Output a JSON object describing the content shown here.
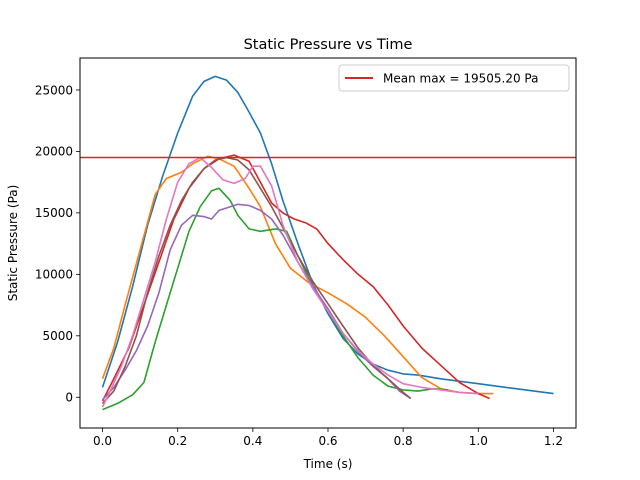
{
  "chart_data": {
    "type": "line",
    "title": "Static Pressure vs Time",
    "xlabel": "Time (s)",
    "ylabel": "Static Pressure (Pa)",
    "xlim": [
      -0.06,
      1.26
    ],
    "ylim": [
      -2500,
      27600
    ],
    "xticks": [
      0.0,
      0.2,
      0.4,
      0.6,
      0.8,
      1.0,
      1.2
    ],
    "xtick_labels": [
      "0.0",
      "0.2",
      "0.4",
      "0.6",
      "0.8",
      "1.0",
      "1.2"
    ],
    "yticks": [
      0,
      5000,
      10000,
      15000,
      20000,
      25000
    ],
    "ytick_labels": [
      "0",
      "5000",
      "10000",
      "15000",
      "20000",
      "25000"
    ],
    "grid": false,
    "legend_position": "top-right",
    "reference_line": {
      "y": 19505.2,
      "label": "Mean max = 19505.20 Pa",
      "color": "#d62728"
    },
    "series": [
      {
        "color": "#1f77b4",
        "points": [
          [
            0.0,
            800
          ],
          [
            0.04,
            4500
          ],
          [
            0.08,
            9000
          ],
          [
            0.12,
            14000
          ],
          [
            0.16,
            18000
          ],
          [
            0.2,
            21500
          ],
          [
            0.24,
            24500
          ],
          [
            0.27,
            25700
          ],
          [
            0.3,
            26100
          ],
          [
            0.33,
            25800
          ],
          [
            0.36,
            24800
          ],
          [
            0.39,
            23200
          ],
          [
            0.42,
            21500
          ],
          [
            0.45,
            19000
          ],
          [
            0.48,
            16000
          ],
          [
            0.52,
            12500
          ],
          [
            0.56,
            9200
          ],
          [
            0.6,
            6800
          ],
          [
            0.64,
            4800
          ],
          [
            0.68,
            3500
          ],
          [
            0.72,
            2700
          ],
          [
            0.76,
            2200
          ],
          [
            0.8,
            1900
          ],
          [
            0.84,
            1800
          ],
          [
            0.9,
            1500
          ],
          [
            1.0,
            1100
          ],
          [
            1.1,
            700
          ],
          [
            1.2,
            300
          ]
        ]
      },
      {
        "color": "#ff7f0e",
        "points": [
          [
            0.0,
            1500
          ],
          [
            0.03,
            4000
          ],
          [
            0.06,
            7500
          ],
          [
            0.1,
            12000
          ],
          [
            0.14,
            16500
          ],
          [
            0.17,
            17800
          ],
          [
            0.21,
            18300
          ],
          [
            0.24,
            19000
          ],
          [
            0.28,
            19600
          ],
          [
            0.31,
            19400
          ],
          [
            0.35,
            18800
          ],
          [
            0.39,
            17000
          ],
          [
            0.42,
            15500
          ],
          [
            0.46,
            12500
          ],
          [
            0.5,
            10500
          ],
          [
            0.55,
            9300
          ],
          [
            0.6,
            8500
          ],
          [
            0.65,
            7600
          ],
          [
            0.7,
            6500
          ],
          [
            0.75,
            5000
          ],
          [
            0.8,
            3300
          ],
          [
            0.85,
            1600
          ],
          [
            0.9,
            700
          ],
          [
            0.95,
            400
          ],
          [
            1.0,
            300
          ],
          [
            1.04,
            300
          ]
        ]
      },
      {
        "color": "#2ca02c",
        "points": [
          [
            0.0,
            -1000
          ],
          [
            0.04,
            -500
          ],
          [
            0.08,
            200
          ],
          [
            0.11,
            1200
          ],
          [
            0.14,
            4500
          ],
          [
            0.17,
            7500
          ],
          [
            0.2,
            10500
          ],
          [
            0.23,
            13500
          ],
          [
            0.26,
            15500
          ],
          [
            0.29,
            16800
          ],
          [
            0.31,
            17000
          ],
          [
            0.34,
            16000
          ],
          [
            0.36,
            14800
          ],
          [
            0.39,
            13700
          ],
          [
            0.42,
            13500
          ],
          [
            0.46,
            13700
          ],
          [
            0.49,
            13500
          ],
          [
            0.52,
            11500
          ],
          [
            0.56,
            9000
          ],
          [
            0.6,
            7000
          ],
          [
            0.64,
            5000
          ],
          [
            0.68,
            3200
          ],
          [
            0.72,
            1800
          ],
          [
            0.76,
            900
          ],
          [
            0.8,
            600
          ],
          [
            0.84,
            500
          ],
          [
            0.88,
            700
          ],
          [
            0.92,
            600
          ]
        ]
      },
      {
        "color": "#d62728",
        "points": [
          [
            0.0,
            -300
          ],
          [
            0.03,
            1500
          ],
          [
            0.07,
            4000
          ],
          [
            0.11,
            7500
          ],
          [
            0.15,
            11000
          ],
          [
            0.19,
            14500
          ],
          [
            0.23,
            17000
          ],
          [
            0.27,
            18600
          ],
          [
            0.31,
            19400
          ],
          [
            0.35,
            19700
          ],
          [
            0.39,
            19200
          ],
          [
            0.42,
            17500
          ],
          [
            0.45,
            15800
          ],
          [
            0.48,
            15000
          ],
          [
            0.51,
            14500
          ],
          [
            0.54,
            14200
          ],
          [
            0.57,
            13700
          ],
          [
            0.6,
            12500
          ],
          [
            0.64,
            11200
          ],
          [
            0.68,
            10000
          ],
          [
            0.72,
            9000
          ],
          [
            0.76,
            7500
          ],
          [
            0.8,
            5800
          ],
          [
            0.85,
            4000
          ],
          [
            0.9,
            2600
          ],
          [
            0.95,
            1200
          ],
          [
            1.0,
            300
          ],
          [
            1.03,
            -100
          ]
        ]
      },
      {
        "color": "#9467bd",
        "points": [
          [
            0.0,
            -200
          ],
          [
            0.03,
            800
          ],
          [
            0.06,
            2200
          ],
          [
            0.09,
            3800
          ],
          [
            0.12,
            5800
          ],
          [
            0.15,
            8500
          ],
          [
            0.18,
            12000
          ],
          [
            0.21,
            14000
          ],
          [
            0.24,
            14800
          ],
          [
            0.27,
            14700
          ],
          [
            0.29,
            14500
          ],
          [
            0.31,
            15200
          ],
          [
            0.33,
            15400
          ],
          [
            0.36,
            15700
          ],
          [
            0.39,
            15600
          ],
          [
            0.42,
            15200
          ],
          [
            0.45,
            14500
          ],
          [
            0.48,
            13200
          ],
          [
            0.52,
            11000
          ],
          [
            0.56,
            9000
          ],
          [
            0.6,
            7200
          ],
          [
            0.64,
            5200
          ],
          [
            0.68,
            3700
          ],
          [
            0.72,
            2500
          ],
          [
            0.76,
            1500
          ],
          [
            0.79,
            500
          ],
          [
            0.82,
            -100
          ]
        ]
      },
      {
        "color": "#8c564b",
        "points": [
          [
            0.0,
            -500
          ],
          [
            0.03,
            500
          ],
          [
            0.06,
            2500
          ],
          [
            0.09,
            5000
          ],
          [
            0.12,
            8500
          ],
          [
            0.15,
            11500
          ],
          [
            0.18,
            14000
          ],
          [
            0.21,
            16000
          ],
          [
            0.24,
            17500
          ],
          [
            0.27,
            18600
          ],
          [
            0.3,
            19300
          ],
          [
            0.33,
            19500
          ],
          [
            0.36,
            19300
          ],
          [
            0.39,
            18500
          ],
          [
            0.42,
            17000
          ],
          [
            0.45,
            15500
          ],
          [
            0.48,
            13800
          ],
          [
            0.52,
            11500
          ],
          [
            0.56,
            9400
          ],
          [
            0.6,
            7600
          ],
          [
            0.64,
            5800
          ],
          [
            0.68,
            4000
          ],
          [
            0.72,
            2600
          ],
          [
            0.76,
            1500
          ],
          [
            0.8,
            400
          ],
          [
            0.82,
            -100
          ]
        ]
      },
      {
        "color": "#e377c2",
        "points": [
          [
            0.0,
            -800
          ],
          [
            0.02,
            500
          ],
          [
            0.05,
            2500
          ],
          [
            0.08,
            5000
          ],
          [
            0.11,
            8000
          ],
          [
            0.14,
            11000
          ],
          [
            0.17,
            14500
          ],
          [
            0.2,
            17500
          ],
          [
            0.23,
            19000
          ],
          [
            0.26,
            19500
          ],
          [
            0.29,
            18700
          ],
          [
            0.32,
            17700
          ],
          [
            0.35,
            17400
          ],
          [
            0.38,
            17800
          ],
          [
            0.4,
            18800
          ],
          [
            0.42,
            18800
          ],
          [
            0.45,
            17200
          ],
          [
            0.48,
            14000
          ],
          [
            0.52,
            11000
          ],
          [
            0.56,
            8800
          ],
          [
            0.6,
            7000
          ],
          [
            0.64,
            5200
          ],
          [
            0.68,
            3800
          ],
          [
            0.72,
            2700
          ],
          [
            0.76,
            1800
          ],
          [
            0.8,
            1100
          ],
          [
            0.85,
            800
          ],
          [
            0.9,
            600
          ],
          [
            0.95,
            400
          ],
          [
            1.0,
            300
          ]
        ]
      }
    ]
  }
}
